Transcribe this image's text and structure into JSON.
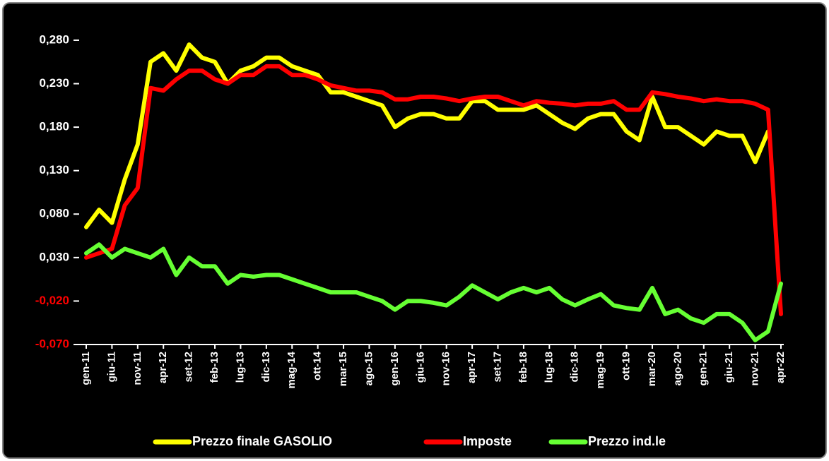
{
  "chart_data": {
    "type": "line",
    "categories": [
      "gen-11",
      null,
      "giu-11",
      null,
      "nov-11",
      null,
      "apr-12",
      null,
      "set-12",
      null,
      "feb-13",
      null,
      "lug-13",
      null,
      "dic-13",
      null,
      "mag-14",
      null,
      "ott-14",
      null,
      "mar-15",
      null,
      "ago-15",
      null,
      "gen-16",
      null,
      "giu-16",
      null,
      "nov-16",
      null,
      "apr-17",
      null,
      "set-17",
      null,
      "feb-18",
      null,
      "lug-18",
      null,
      "dic-18",
      null,
      "mag-19",
      null,
      "ott-19",
      null,
      "mar-20",
      null,
      "ago-20",
      null,
      "gen-21",
      null,
      "giu-21",
      null,
      "nov-21",
      null,
      "apr-22"
    ],
    "series": [
      {
        "name": "Prezzo finale GASOLIO",
        "color": "#ffff00",
        "values": [
          0.065,
          0.085,
          0.07,
          0.12,
          0.16,
          0.255,
          0.265,
          0.245,
          0.275,
          0.26,
          0.255,
          0.23,
          0.245,
          0.25,
          0.26,
          0.26,
          0.25,
          0.245,
          0.24,
          0.22,
          0.22,
          0.215,
          0.21,
          0.205,
          0.18,
          0.19,
          0.195,
          0.195,
          0.19,
          0.19,
          0.21,
          0.21,
          0.2,
          0.2,
          0.2,
          0.205,
          0.195,
          0.185,
          0.178,
          0.19,
          0.195,
          0.195,
          0.175,
          0.165,
          0.215,
          0.18,
          0.18,
          0.17,
          0.16,
          0.175,
          0.17,
          0.17,
          0.14,
          0.175,
          null
        ]
      },
      {
        "name": "Imposte",
        "color": "#ff0000",
        "values": [
          0.03,
          0.035,
          0.04,
          0.09,
          0.11,
          0.225,
          0.222,
          0.235,
          0.245,
          0.245,
          0.235,
          0.23,
          0.24,
          0.24,
          0.25,
          0.25,
          0.24,
          0.24,
          0.235,
          0.228,
          0.225,
          0.222,
          0.222,
          0.22,
          0.212,
          0.212,
          0.215,
          0.215,
          0.213,
          0.21,
          0.213,
          0.215,
          0.215,
          0.21,
          0.205,
          0.21,
          0.208,
          0.207,
          0.205,
          0.207,
          0.207,
          0.21,
          0.2,
          0.2,
          0.22,
          0.218,
          0.215,
          0.213,
          0.21,
          0.212,
          0.21,
          0.21,
          0.207,
          0.2,
          -0.035
        ]
      },
      {
        "name": "Prezzo ind.le",
        "color": "#66ff33",
        "values": [
          0.035,
          0.045,
          0.03,
          0.04,
          0.035,
          0.03,
          0.04,
          0.01,
          0.03,
          0.02,
          0.02,
          0.0,
          0.01,
          0.008,
          0.01,
          0.01,
          0.005,
          0.0,
          -0.005,
          -0.01,
          -0.01,
          -0.01,
          -0.015,
          -0.02,
          -0.03,
          -0.02,
          -0.02,
          -0.022,
          -0.025,
          -0.015,
          -0.002,
          -0.01,
          -0.018,
          -0.01,
          -0.005,
          -0.01,
          -0.005,
          -0.018,
          -0.025,
          -0.018,
          -0.012,
          -0.025,
          -0.028,
          -0.03,
          -0.005,
          -0.035,
          -0.03,
          -0.04,
          -0.045,
          -0.035,
          -0.035,
          -0.045,
          -0.065,
          -0.055,
          0.0
        ]
      }
    ],
    "ylim": [
      -0.07,
      0.31
    ],
    "yticks": [
      {
        "value": -0.07,
        "label": "-0,070"
      },
      {
        "value": -0.02,
        "label": "-0,020"
      },
      {
        "value": 0.03,
        "label": "0,030"
      },
      {
        "value": 0.08,
        "label": "0,080"
      },
      {
        "value": 0.13,
        "label": "0,130"
      },
      {
        "value": 0.18,
        "label": "0,180"
      },
      {
        "value": 0.23,
        "label": "0,230"
      },
      {
        "value": 0.28,
        "label": "0,280"
      }
    ],
    "tick_label_color": "#ffffff",
    "negative_tick_label_color": "#ff0000",
    "background": "#000000",
    "grid": false,
    "legend": "bottom"
  }
}
